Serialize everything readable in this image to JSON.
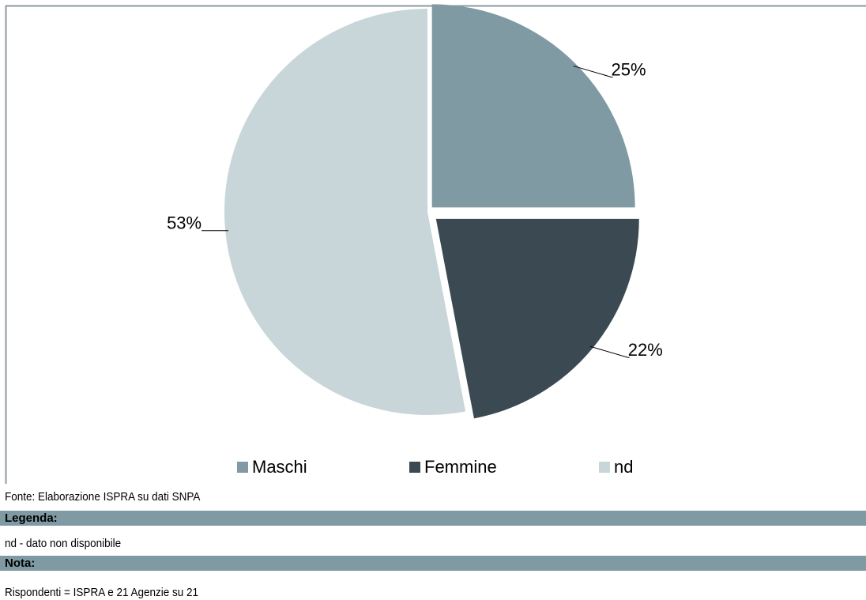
{
  "chart_data": {
    "type": "pie",
    "categories": [
      "Maschi",
      "Femmine",
      "nd"
    ],
    "values": [
      25,
      22,
      53
    ],
    "value_labels": [
      "25%",
      "22%",
      "53%"
    ],
    "colors": [
      "#7f9aa3",
      "#3b4a52",
      "#c9d6d9"
    ],
    "legend": "bottom"
  },
  "footer": {
    "source": "Fonte: Elaborazione ISPRA su dati SNPA",
    "legend_title": "Legenda:",
    "legend_text": "nd - dato non disponibile",
    "note_title": "Nota:",
    "note_text": "Rispondenti = ISPRA e 21 Agenzie su 21"
  }
}
